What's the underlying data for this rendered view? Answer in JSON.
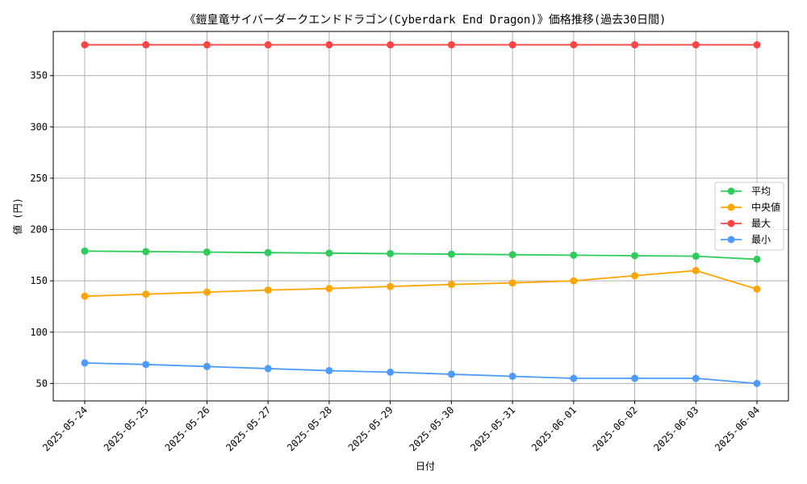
{
  "chart_data": {
    "type": "line",
    "title": "《鎧皇竜サイバーダークエンドドラゴン(Cyberdark End Dragon)》価格推移(過去30日間)",
    "xlabel": "日付",
    "ylabel": "値 (円)",
    "categories": [
      "2025-05-24",
      "2025-05-25",
      "2025-05-26",
      "2025-05-27",
      "2025-05-28",
      "2025-05-29",
      "2025-05-30",
      "2025-05-31",
      "2025-06-01",
      "2025-06-02",
      "2025-06-03",
      "2025-06-04"
    ],
    "ylim": [
      33,
      393
    ],
    "yticks": [
      50,
      100,
      150,
      200,
      250,
      300,
      350
    ],
    "grid": true,
    "legend_position": "center-right",
    "series": [
      {
        "name": "平均",
        "color": "#2ecc5a",
        "values": [
          179,
          178.5,
          178,
          177.5,
          177,
          176.5,
          176,
          175.5,
          175,
          174.5,
          174,
          171
        ]
      },
      {
        "name": "中央値",
        "color": "#ffa500",
        "values": [
          135,
          137,
          139,
          141,
          142.5,
          144.5,
          146.5,
          148,
          150,
          155,
          160,
          142
        ]
      },
      {
        "name": "最大",
        "color": "#ff4444",
        "values": [
          380,
          380,
          380,
          380,
          380,
          380,
          380,
          380,
          380,
          380,
          380,
          380
        ]
      },
      {
        "name": "最小",
        "color": "#4d9bff",
        "values": [
          70,
          68.5,
          66.5,
          64.5,
          62.5,
          61,
          59,
          57,
          55,
          55,
          55,
          50
        ]
      }
    ]
  }
}
